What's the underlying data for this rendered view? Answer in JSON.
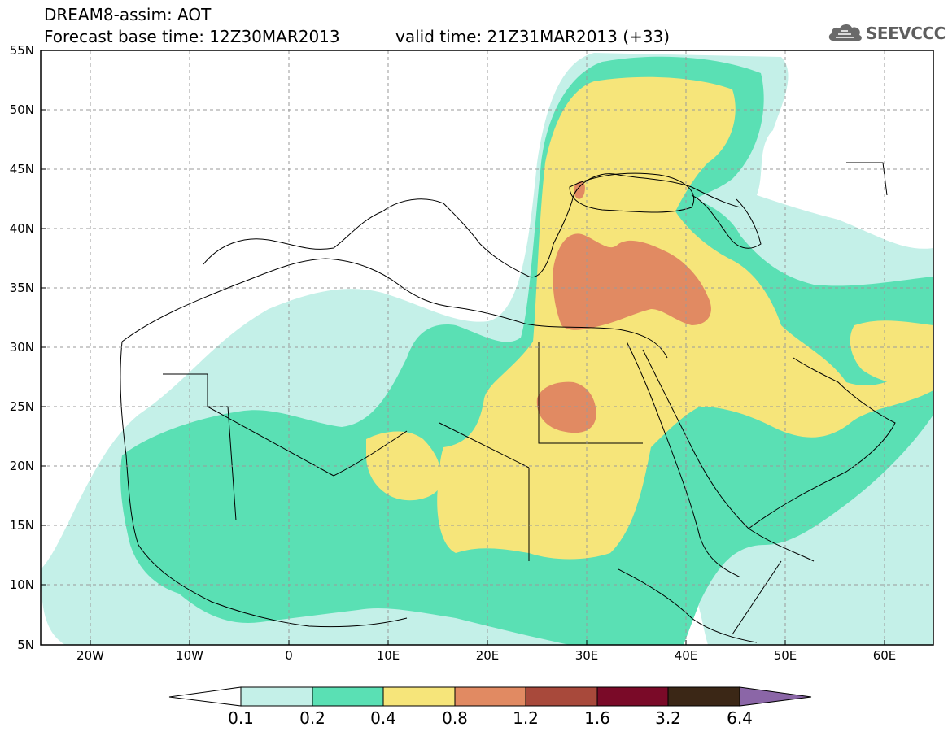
{
  "header": {
    "model_title": "DREAM8-assim: AOT",
    "base_time": "Forecast base time: 12Z30MAR2013",
    "valid_time": "valid time: 21Z31MAR2013 (+33)",
    "logo_text": "SEEVCCC"
  },
  "map": {
    "lat_range": [
      5,
      55
    ],
    "lon_range": [
      -25,
      65
    ],
    "lat_labels": [
      "55N",
      "50N",
      "45N",
      "40N",
      "35N",
      "30N",
      "25N",
      "20N",
      "15N",
      "10N",
      "5N"
    ],
    "lon_labels": [
      "20W",
      "10W",
      "0",
      "10E",
      "20E",
      "30E",
      "40E",
      "50E",
      "60E"
    ],
    "grid": "dashed"
  },
  "colorbar": {
    "labels": [
      "0.1",
      "0.2",
      "0.4",
      "0.8",
      "1.2",
      "1.6",
      "3.2",
      "6.4"
    ],
    "colors": [
      "#ffffff",
      "#c4f0e8",
      "#5ae0b4",
      "#f6e57a",
      "#e18a62",
      "#a8493b",
      "#7a0a28",
      "#3b2716",
      "#8b66a7"
    ]
  }
}
